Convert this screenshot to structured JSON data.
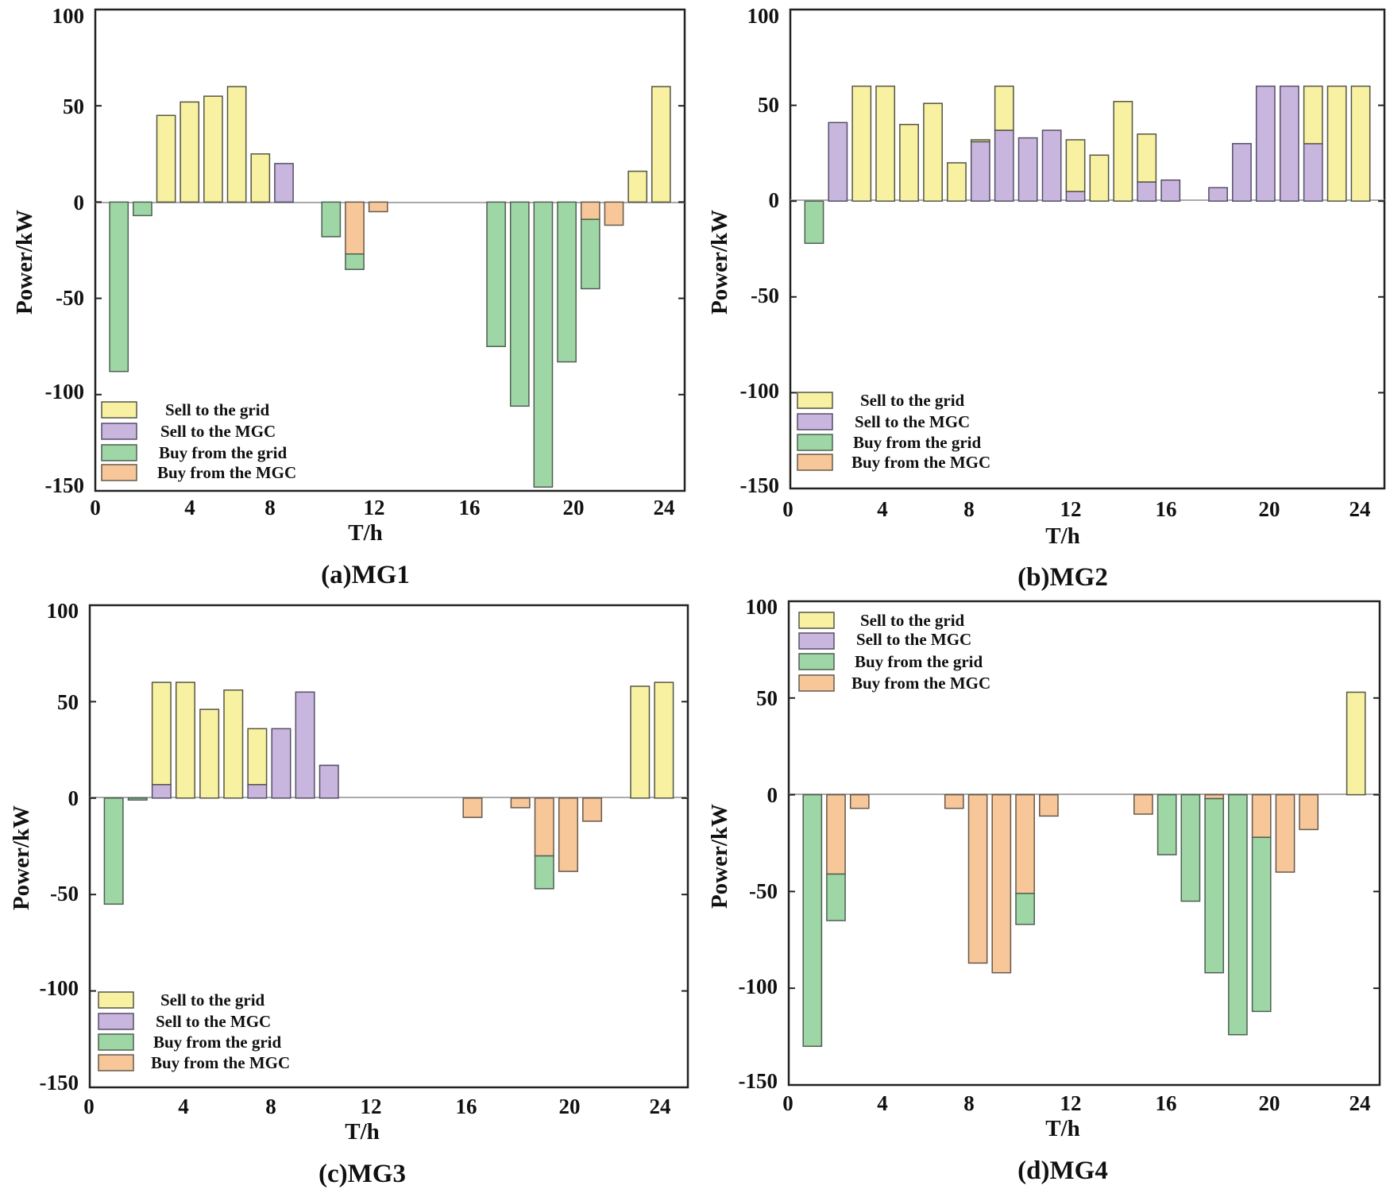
{
  "figure": {
    "series_colors": {
      "sell_grid": {
        "fill": "#f7f1a1",
        "stroke": "#555544"
      },
      "sell_mgc": {
        "fill": "#c9b6de",
        "stroke": "#554f66"
      },
      "buy_grid": {
        "fill": "#9ed7a5",
        "stroke": "#4f5f52"
      },
      "buy_mgc": {
        "fill": "#f7c79a",
        "stroke": "#66584a"
      }
    }
  },
  "chart_data": [
    {
      "type": "bar",
      "stacked": true,
      "caption": "(a)MG1",
      "xlabel": "T/h",
      "ylabel": "Power/kW",
      "xlim": [
        0,
        25
      ],
      "ylim": [
        -150,
        100
      ],
      "xticks": [
        0,
        4,
        8,
        12,
        16,
        20,
        24
      ],
      "yticks": [
        100,
        50,
        0,
        -50,
        -100,
        -150
      ],
      "legend_position": "bottom-left",
      "x": [
        1,
        2,
        3,
        4,
        5,
        6,
        7,
        8,
        9,
        10,
        11,
        12,
        13,
        14,
        15,
        16,
        17,
        18,
        19,
        20,
        21,
        22,
        23,
        24
      ],
      "series": [
        {
          "key": "sell_grid",
          "name": "Sell to the grid",
          "values": [
            0,
            0,
            45,
            52,
            55,
            60,
            25,
            0,
            0,
            0,
            0,
            0,
            0,
            0,
            0,
            0,
            0,
            0,
            0,
            0,
            0,
            0,
            16,
            60
          ]
        },
        {
          "key": "sell_mgc",
          "name": "Sell to the MGC",
          "values": [
            0,
            0,
            0,
            0,
            0,
            0,
            0,
            20,
            0,
            0,
            0,
            0,
            0,
            0,
            0,
            0,
            0,
            0,
            0,
            0,
            0,
            0,
            0,
            0
          ]
        },
        {
          "key": "buy_grid",
          "name": "Buy from the grid",
          "values": [
            -88,
            -7,
            0,
            0,
            0,
            0,
            0,
            0,
            0,
            -18,
            -8,
            0,
            0,
            0,
            0,
            0,
            -75,
            -106,
            -148,
            -83,
            -36,
            0,
            0,
            0
          ]
        },
        {
          "key": "buy_mgc",
          "name": "Buy from the MGC",
          "values": [
            0,
            0,
            0,
            0,
            0,
            0,
            0,
            0,
            0,
            0,
            -27,
            -5,
            0,
            0,
            0,
            0,
            0,
            0,
            0,
            0,
            -9,
            -12,
            0,
            0
          ]
        }
      ]
    },
    {
      "type": "bar",
      "stacked": true,
      "caption": "(b)MG2",
      "xlabel": "T/h",
      "ylabel": "Power/kW",
      "xlim": [
        0,
        25
      ],
      "ylim": [
        -150,
        100
      ],
      "xticks": [
        0,
        4,
        8,
        12,
        16,
        20,
        24
      ],
      "yticks": [
        100,
        50,
        0,
        -50,
        -100,
        -150
      ],
      "legend_position": "bottom-left",
      "x": [
        1,
        2,
        3,
        4,
        5,
        6,
        7,
        8,
        9,
        10,
        11,
        12,
        13,
        14,
        15,
        16,
        17,
        18,
        19,
        20,
        21,
        22,
        23,
        24
      ],
      "series": [
        {
          "key": "sell_grid",
          "name": "Sell to the grid",
          "values": [
            0,
            0,
            60,
            60,
            40,
            51,
            20,
            1,
            23,
            0,
            0,
            27,
            24,
            52,
            25,
            0,
            0,
            0,
            0,
            0,
            0,
            30,
            60,
            60
          ]
        },
        {
          "key": "sell_mgc",
          "name": "Sell to the MGC",
          "values": [
            0,
            41,
            0,
            0,
            0,
            0,
            0,
            31,
            37,
            33,
            37,
            5,
            0,
            0,
            10,
            11,
            0,
            7,
            30,
            60,
            60,
            30,
            0,
            0
          ]
        },
        {
          "key": "buy_grid",
          "name": "Buy from the grid",
          "values": [
            -22,
            0,
            0,
            0,
            0,
            0,
            0,
            0,
            0,
            0,
            0,
            0,
            0,
            0,
            0,
            0,
            0,
            0,
            0,
            0,
            0,
            0,
            0,
            0
          ]
        },
        {
          "key": "buy_mgc",
          "name": "Buy from the MGC",
          "values": [
            0,
            0,
            0,
            0,
            0,
            0,
            0,
            0,
            0,
            0,
            0,
            0,
            0,
            0,
            0,
            0,
            0,
            0,
            0,
            0,
            0,
            0,
            0,
            0
          ]
        }
      ]
    },
    {
      "type": "bar",
      "stacked": true,
      "caption": "(c)MG3",
      "xlabel": "T/h",
      "ylabel": "Power/kW",
      "xlim": [
        0,
        25
      ],
      "ylim": [
        -150,
        100
      ],
      "xticks": [
        0,
        4,
        8,
        12,
        16,
        20,
        24
      ],
      "yticks": [
        100,
        50,
        0,
        -50,
        -100,
        -150
      ],
      "legend_position": "bottom-left",
      "x": [
        1,
        2,
        3,
        4,
        5,
        6,
        7,
        8,
        9,
        10,
        11,
        12,
        13,
        14,
        15,
        16,
        17,
        18,
        19,
        20,
        21,
        22,
        23,
        24
      ],
      "series": [
        {
          "key": "sell_grid",
          "name": "Sell to the grid",
          "values": [
            0,
            0,
            53,
            60,
            46,
            56,
            29,
            0,
            0,
            0,
            0,
            0,
            0,
            0,
            0,
            0,
            0,
            0,
            0,
            0,
            0,
            0,
            58,
            60
          ]
        },
        {
          "key": "sell_mgc",
          "name": "Sell to the MGC",
          "values": [
            0,
            0,
            7,
            0,
            0,
            0,
            7,
            36,
            55,
            17,
            0,
            0,
            0,
            0,
            0,
            0,
            0,
            0,
            0,
            0,
            0,
            0,
            0,
            0
          ]
        },
        {
          "key": "buy_grid",
          "name": "Buy from the grid",
          "values": [
            -55,
            -1,
            0,
            0,
            0,
            0,
            0,
            0,
            0,
            0,
            0,
            0,
            0,
            0,
            0,
            0,
            0,
            0,
            -17,
            0,
            0,
            0,
            0,
            0
          ]
        },
        {
          "key": "buy_mgc",
          "name": "Buy from the MGC",
          "values": [
            0,
            0,
            0,
            0,
            0,
            0,
            0,
            0,
            0,
            0,
            0,
            0,
            0,
            0,
            0,
            -10,
            0,
            -5,
            -30,
            -38,
            -12,
            0,
            0,
            0
          ]
        }
      ]
    },
    {
      "type": "bar",
      "stacked": true,
      "caption": "(d)MG4",
      "xlabel": "T/h",
      "ylabel": "Power/kW",
      "xlim": [
        0,
        25
      ],
      "ylim": [
        -150,
        100
      ],
      "xticks": [
        0,
        4,
        8,
        12,
        16,
        20,
        24
      ],
      "yticks": [
        100,
        50,
        0,
        -50,
        -100,
        -150
      ],
      "legend_position": "top-left",
      "x": [
        1,
        2,
        3,
        4,
        5,
        6,
        7,
        8,
        9,
        10,
        11,
        12,
        13,
        14,
        15,
        16,
        17,
        18,
        19,
        20,
        21,
        22,
        23,
        24
      ],
      "series": [
        {
          "key": "sell_grid",
          "name": "Sell to the grid",
          "values": [
            0,
            0,
            0,
            0,
            0,
            0,
            0,
            0,
            0,
            0,
            0,
            0,
            0,
            0,
            0,
            0,
            0,
            0,
            0,
            0,
            0,
            0,
            0,
            53
          ]
        },
        {
          "key": "sell_mgc",
          "name": "Sell to the MGC",
          "values": [
            0,
            0,
            0,
            0,
            0,
            0,
            0,
            0,
            0,
            0,
            0,
            0,
            0,
            0,
            0,
            0,
            0,
            0,
            0,
            0,
            0,
            0,
            0,
            0
          ]
        },
        {
          "key": "buy_grid",
          "name": "Buy from the grid",
          "values": [
            -130,
            -24,
            0,
            0,
            0,
            0,
            0,
            0,
            0,
            -16,
            0,
            0,
            0,
            0,
            0,
            -31,
            -55,
            -90,
            -124,
            -90,
            0,
            0,
            0,
            0
          ]
        },
        {
          "key": "buy_mgc",
          "name": "Buy from the MGC",
          "values": [
            0,
            -41,
            -7,
            0,
            0,
            0,
            -7,
            -87,
            -92,
            -51,
            -11,
            0,
            0,
            0,
            -10,
            0,
            0,
            -2,
            0,
            -22,
            -40,
            -18,
            0,
            0
          ]
        }
      ]
    }
  ]
}
